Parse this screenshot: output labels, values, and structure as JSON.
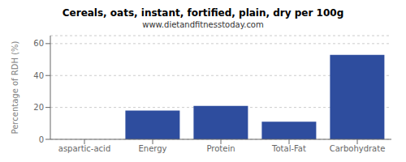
{
  "chart_data": {
    "type": "bar",
    "title": "Cereals, oats, instant, fortified, plain, dry per 100g",
    "subtitle": "www.dietandfitnesstoday.com",
    "categories": [
      "aspartic-acid",
      "Energy",
      "Protein",
      "Total-Fat",
      "Carbohydrate"
    ],
    "values": [
      0,
      18,
      21,
      11,
      53
    ],
    "color": "#2e4d9e",
    "ylabel": "Percentage of RDH (%)",
    "ylim": [
      0,
      65
    ],
    "yticks": [
      0,
      20,
      40,
      60
    ],
    "grid": true
  }
}
